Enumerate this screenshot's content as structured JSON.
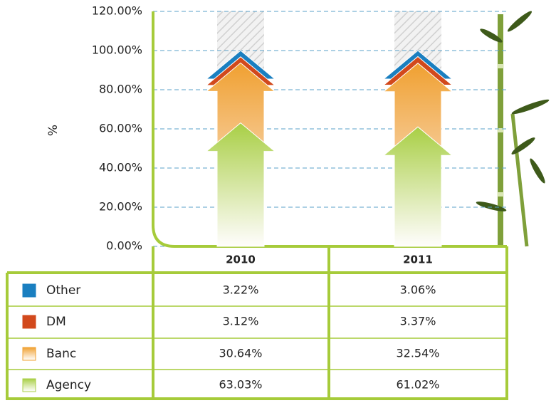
{
  "chart_data": {
    "type": "stacked-arrow",
    "ylabel": "%",
    "categories": [
      "2010",
      "2011"
    ],
    "series": [
      {
        "name": "Other",
        "color": "#1a7fc0",
        "values": [
          3.22,
          3.06
        ],
        "value_labels": [
          "3.22%",
          "3.06%"
        ]
      },
      {
        "name": "DM",
        "color": "#d2491c",
        "values": [
          3.12,
          3.37
        ],
        "value_labels": [
          "3.12%",
          "3.37%"
        ]
      },
      {
        "name": "Banc",
        "color": "#f0a030",
        "values": [
          30.64,
          32.54
        ],
        "value_labels": [
          "30.64%",
          "32.54%"
        ]
      },
      {
        "name": "Agency",
        "color": "#a8cf45",
        "values": [
          63.03,
          61.02
        ],
        "value_labels": [
          "63.03%",
          "61.02%"
        ]
      }
    ],
    "ylim": [
      0,
      120
    ],
    "yticks": [
      {
        "value": 0,
        "label": "0.00%"
      },
      {
        "value": 20,
        "label": "20.00%"
      },
      {
        "value": 40,
        "label": "40.00%"
      },
      {
        "value": 60,
        "label": "60.00%"
      },
      {
        "value": 80,
        "label": "80.00%"
      },
      {
        "value": 100,
        "label": "100.00%"
      },
      {
        "value": 120,
        "label": "120.00%"
      }
    ],
    "grid": true
  }
}
